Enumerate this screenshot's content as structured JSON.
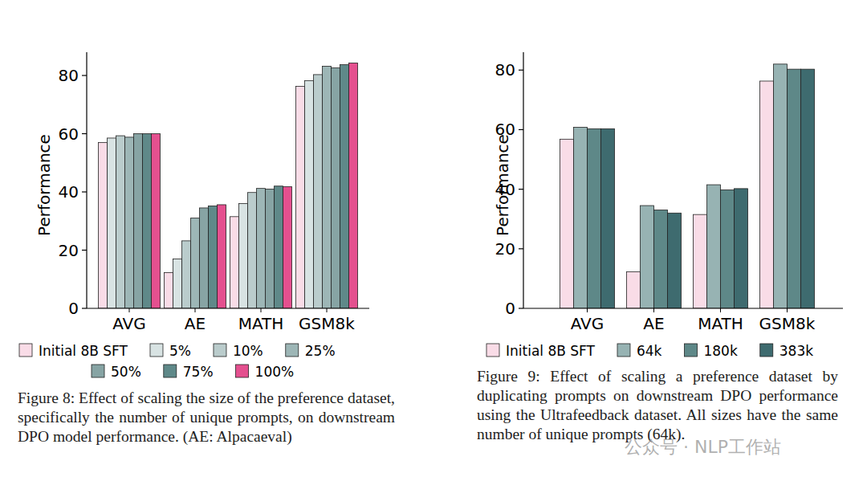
{
  "chart_data": [
    {
      "type": "bar",
      "caption": "Figure 8: Effect of scaling the size of the preference dataset, specifically the number of unique prompts, on downstream DPO model performance. (AE: Alpacaeval)",
      "y_label": "Performance",
      "categories": [
        "AVG",
        "AE",
        "MATH",
        "GSM8k"
      ],
      "series": [
        {
          "name": "Initial 8B SFT",
          "color": "#f9dce7",
          "values": [
            57,
            12.3,
            31.5,
            76.3
          ]
        },
        {
          "name": "5%",
          "color": "#d8e3e3",
          "values": [
            58.5,
            17,
            36,
            78.2
          ]
        },
        {
          "name": "10%",
          "color": "#bacccc",
          "values": [
            59.3,
            23.2,
            39.8,
            80.3
          ]
        },
        {
          "name": "25%",
          "color": "#9db6b6",
          "values": [
            58.8,
            31,
            41.2,
            83.2
          ]
        },
        {
          "name": "50%",
          "color": "#87a4a4",
          "values": [
            60,
            34.5,
            41,
            82.6
          ]
        },
        {
          "name": "75%",
          "color": "#5f8989",
          "values": [
            60,
            35.2,
            42,
            83.7
          ]
        },
        {
          "name": "100%",
          "color": "#e4508f",
          "values": [
            60,
            35.6,
            41.8,
            84.3
          ]
        }
      ],
      "ylim": [
        0,
        88
      ],
      "yticks": [
        0,
        20,
        40,
        60,
        80
      ],
      "grid": false,
      "legend": "bottom"
    },
    {
      "type": "bar",
      "caption": "Figure 9: Effect of scaling a preference dataset by duplicating prompts on downstream DPO performance using the Ultrafeedback dataset. All sizes have the same number of unique prompts (64k).",
      "y_label": "Performance",
      "categories": [
        "AVG",
        "AE",
        "MATH",
        "GSM8k"
      ],
      "series": [
        {
          "name": "Initial 8B SFT",
          "color": "#f9dce7",
          "values": [
            56.8,
            12.3,
            31.5,
            76.3
          ]
        },
        {
          "name": "64k",
          "color": "#97b3b3",
          "values": [
            60.8,
            34.5,
            41.5,
            82
          ]
        },
        {
          "name": "180k",
          "color": "#5e8888",
          "values": [
            60.3,
            33,
            39.8,
            80.3
          ]
        },
        {
          "name": "383k",
          "color": "#3e6b6f",
          "values": [
            60.3,
            32,
            40.2,
            80.3
          ]
        }
      ],
      "ylim": [
        0,
        86
      ],
      "yticks": [
        0,
        20,
        40,
        60,
        80
      ],
      "grid": false,
      "legend": "bottom"
    }
  ],
  "watermark": "公众号 · NLP工作站"
}
